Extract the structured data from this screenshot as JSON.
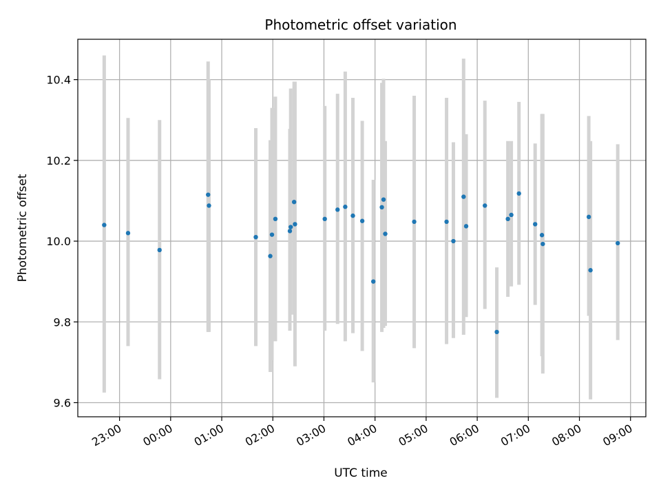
{
  "chart_data": {
    "type": "scatter",
    "title": "Photometric offset variation",
    "xlabel": "UTC time",
    "ylabel": "Photometric offset",
    "grid": true,
    "x_axis": {
      "kind": "time",
      "min": "22:11",
      "max": "09:18",
      "ticks": [
        "23:00",
        "00:00",
        "01:00",
        "02:00",
        "03:00",
        "04:00",
        "05:00",
        "06:00",
        "07:00",
        "08:00",
        "09:00"
      ]
    },
    "y_axis": {
      "min": 9.565,
      "max": 10.5,
      "ticks": [
        "9.6",
        "9.8",
        "10.0",
        "10.2",
        "10.4"
      ]
    },
    "colors": {
      "point": "#1f77b4",
      "errorbar": "#d3d3d3",
      "grid": "#b0b0b0"
    },
    "series": [
      {
        "points": [
          {
            "t": "22:42",
            "y": 10.04,
            "lo": 9.625,
            "hi": 10.46
          },
          {
            "t": "23:10",
            "y": 10.02,
            "lo": 9.74,
            "hi": 10.305
          },
          {
            "t": "23:47",
            "y": 9.978,
            "lo": 9.658,
            "hi": 10.3
          },
          {
            "t": "00:44",
            "y": 10.115,
            "lo": 9.775,
            "hi": 10.445
          },
          {
            "t": "00:45",
            "y": 10.088,
            "lo": 9.775,
            "hi": 10.4
          },
          {
            "t": "01:40",
            "y": 10.01,
            "lo": 9.74,
            "hi": 10.28
          },
          {
            "t": "01:57",
            "y": 9.963,
            "lo": 9.676,
            "hi": 10.25
          },
          {
            "t": "01:59",
            "y": 10.016,
            "lo": 9.705,
            "hi": 10.33
          },
          {
            "t": "02:03",
            "y": 10.055,
            "lo": 9.752,
            "hi": 10.358
          },
          {
            "t": "02:20",
            "y": 10.025,
            "lo": 9.778,
            "hi": 10.278
          },
          {
            "t": "02:21",
            "y": 10.035,
            "lo": 9.818,
            "hi": 10.378
          },
          {
            "t": "02:25",
            "y": 10.097,
            "lo": 9.818,
            "hi": 10.395
          },
          {
            "t": "02:26",
            "y": 10.042,
            "lo": 9.69,
            "hi": 10.395
          },
          {
            "t": "03:01",
            "y": 10.055,
            "lo": 9.778,
            "hi": 10.335
          },
          {
            "t": "03:16",
            "y": 10.078,
            "lo": 9.795,
            "hi": 10.365
          },
          {
            "t": "03:25",
            "y": 10.085,
            "lo": 9.752,
            "hi": 10.42
          },
          {
            "t": "03:34",
            "y": 10.063,
            "lo": 9.772,
            "hi": 10.355
          },
          {
            "t": "03:45",
            "y": 10.05,
            "lo": 9.728,
            "hi": 10.298
          },
          {
            "t": "03:58",
            "y": 9.9,
            "lo": 9.65,
            "hi": 10.152
          },
          {
            "t": "04:08",
            "y": 10.084,
            "lo": 9.775,
            "hi": 10.392
          },
          {
            "t": "04:10",
            "y": 10.103,
            "lo": 9.785,
            "hi": 10.402
          },
          {
            "t": "04:12",
            "y": 10.018,
            "lo": 9.79,
            "hi": 10.248
          },
          {
            "t": "04:46",
            "y": 10.048,
            "lo": 9.735,
            "hi": 10.36
          },
          {
            "t": "05:24",
            "y": 10.048,
            "lo": 9.745,
            "hi": 10.355
          },
          {
            "t": "05:32",
            "y": 10.0,
            "lo": 9.76,
            "hi": 10.245
          },
          {
            "t": "05:44",
            "y": 10.11,
            "lo": 9.768,
            "hi": 10.452
          },
          {
            "t": "05:47",
            "y": 10.037,
            "lo": 9.812,
            "hi": 10.265
          },
          {
            "t": "06:09",
            "y": 10.088,
            "lo": 9.832,
            "hi": 10.348
          },
          {
            "t": "06:23",
            "y": 9.775,
            "lo": 9.612,
            "hi": 9.935
          },
          {
            "t": "06:36",
            "y": 10.055,
            "lo": 9.862,
            "hi": 10.248
          },
          {
            "t": "06:40",
            "y": 10.065,
            "lo": 9.888,
            "hi": 10.248
          },
          {
            "t": "06:49",
            "y": 10.118,
            "lo": 9.892,
            "hi": 10.345
          },
          {
            "t": "07:08",
            "y": 10.042,
            "lo": 9.842,
            "hi": 10.242
          },
          {
            "t": "07:16",
            "y": 10.015,
            "lo": 9.715,
            "hi": 10.315
          },
          {
            "t": "07:17",
            "y": 9.993,
            "lo": 9.672,
            "hi": 10.315
          },
          {
            "t": "08:11",
            "y": 10.06,
            "lo": 9.815,
            "hi": 10.31
          },
          {
            "t": "08:13",
            "y": 9.928,
            "lo": 9.608,
            "hi": 10.248
          },
          {
            "t": "08:45",
            "y": 9.995,
            "lo": 9.755,
            "hi": 10.24
          }
        ]
      }
    ]
  }
}
